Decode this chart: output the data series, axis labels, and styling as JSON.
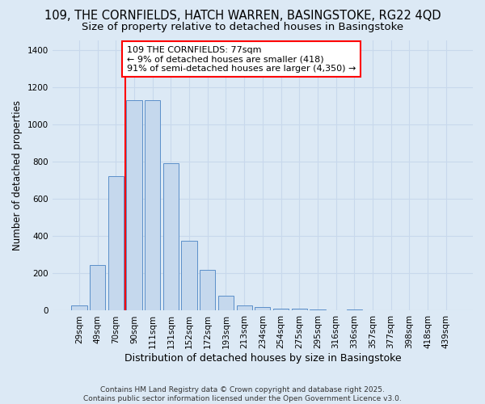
{
  "title_line1": "109, THE CORNFIELDS, HATCH WARREN, BASINGSTOKE, RG22 4QD",
  "title_line2": "Size of property relative to detached houses in Basingstoke",
  "xlabel": "Distribution of detached houses by size in Basingstoke",
  "ylabel": "Number of detached properties",
  "categories": [
    "29sqm",
    "49sqm",
    "70sqm",
    "90sqm",
    "111sqm",
    "131sqm",
    "152sqm",
    "172sqm",
    "193sqm",
    "213sqm",
    "234sqm",
    "254sqm",
    "275sqm",
    "295sqm",
    "316sqm",
    "336sqm",
    "357sqm",
    "377sqm",
    "398sqm",
    "418sqm",
    "439sqm"
  ],
  "values": [
    30,
    245,
    720,
    1130,
    1130,
    790,
    375,
    220,
    80,
    30,
    20,
    10,
    10,
    5,
    2,
    5,
    0,
    0,
    0,
    0,
    0
  ],
  "bar_color": "#c5d8ed",
  "bar_edge_color": "#5b8fc9",
  "grid_color": "#c8d8ec",
  "bg_color": "#dce9f5",
  "vline_color": "red",
  "annotation_text": "109 THE CORNFIELDS: 77sqm\n← 9% of detached houses are smaller (418)\n91% of semi-detached houses are larger (4,350) →",
  "annotation_box_color": "white",
  "annotation_box_edgecolor": "red",
  "ylim": [
    0,
    1450
  ],
  "footer": "Contains HM Land Registry data © Crown copyright and database right 2025.\nContains public sector information licensed under the Open Government Licence v3.0.",
  "title_fontsize": 10.5,
  "subtitle_fontsize": 9.5,
  "ylabel_fontsize": 8.5,
  "xlabel_fontsize": 9,
  "tick_fontsize": 7.5,
  "annotation_fontsize": 8,
  "footer_fontsize": 6.5,
  "vline_index": 2.5
}
